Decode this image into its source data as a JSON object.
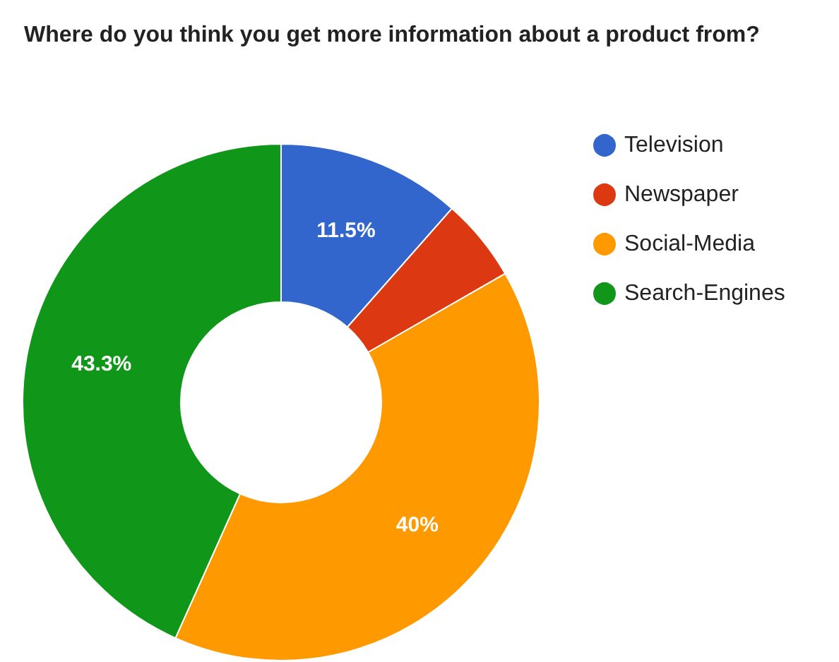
{
  "chart_data": {
    "type": "donut",
    "title": "Where do you think you get more information about a product from?",
    "categories": [
      "Television",
      "Newspaper",
      "Social-Media",
      "Search-Engines"
    ],
    "values": [
      11.5,
      5.2,
      40,
      43.3
    ],
    "colors": [
      "#3366cc",
      "#dc3912",
      "#ff9900",
      "#109618"
    ],
    "value_labels": [
      "11.5%",
      null,
      "40%",
      "43.3%"
    ],
    "legend": "top right"
  }
}
